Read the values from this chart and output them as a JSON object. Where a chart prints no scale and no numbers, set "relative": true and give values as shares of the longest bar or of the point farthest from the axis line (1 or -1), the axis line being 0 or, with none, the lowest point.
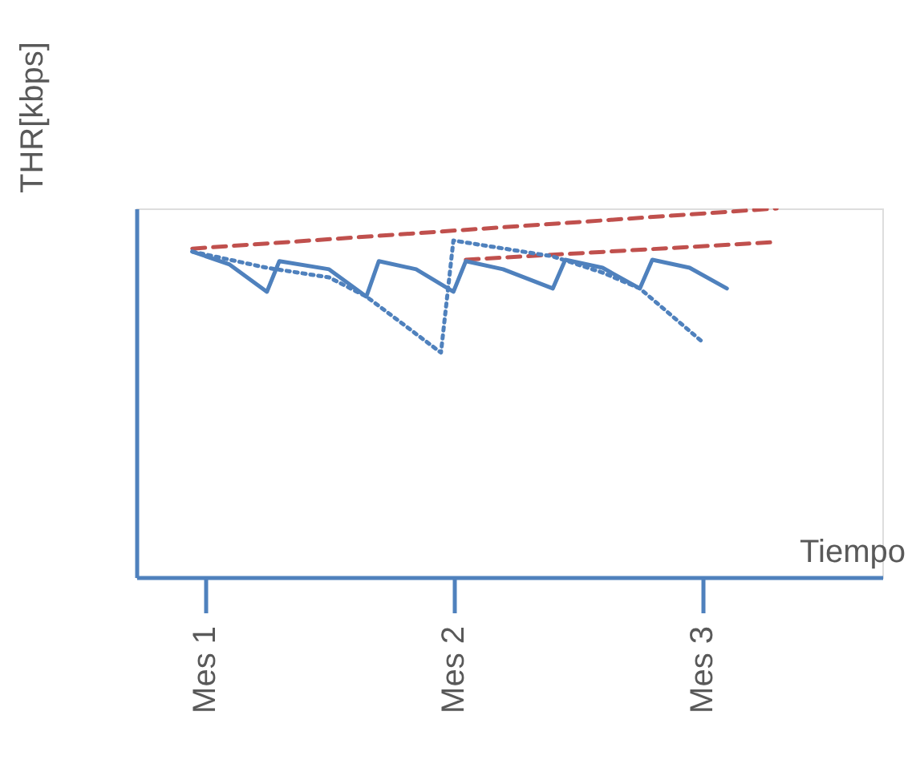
{
  "chart_data": {
    "type": "line",
    "relative": true,
    "xlabel": "Tiempo",
    "ylabel": "THR[kbps]",
    "categories": [
      null,
      null,
      null,
      null,
      null,
      "Mes 1",
      null,
      null,
      null,
      null,
      null,
      null,
      null,
      null,
      null,
      null,
      null,
      null,
      null,
      null,
      null,
      null,
      null,
      null,
      null,
      "Mes 2",
      null,
      null,
      null,
      null,
      null,
      null,
      null,
      null,
      null,
      null,
      null,
      null,
      null,
      null,
      null,
      null,
      null,
      null,
      null,
      "Mes 3",
      null,
      null,
      null,
      null,
      null,
      null,
      null,
      null,
      null,
      null,
      null,
      null,
      null,
      null
    ],
    "tick_labels": "x",
    "grid": false,
    "marker": "none",
    "series": [
      {
        "color": "#c0504d",
        "line_style": "dashed",
        "values": [
          null,
          null,
          null,
          null,
          0.891,
          null,
          null,
          null,
          null,
          null,
          null,
          null,
          null,
          null,
          null,
          null,
          null,
          null,
          null,
          null,
          null,
          null,
          null,
          null,
          null,
          null,
          null,
          null,
          null,
          null,
          null,
          null,
          null,
          null,
          null,
          null,
          null,
          null,
          null,
          null,
          null,
          null,
          null,
          null,
          null,
          null,
          null,
          null,
          null,
          null,
          null,
          1.0,
          null,
          null,
          null,
          null,
          null,
          null,
          null,
          null
        ]
      },
      {
        "color": "#c0504d",
        "line_style": "dashed",
        "values": [
          null,
          null,
          null,
          null,
          null,
          null,
          null,
          null,
          null,
          null,
          null,
          null,
          null,
          null,
          null,
          null,
          null,
          null,
          null,
          null,
          null,
          null,
          null,
          null,
          null,
          null,
          0.861,
          null,
          null,
          null,
          null,
          null,
          null,
          null,
          null,
          null,
          null,
          null,
          null,
          null,
          null,
          null,
          null,
          null,
          null,
          null,
          null,
          null,
          null,
          null,
          null,
          0.909,
          null,
          null,
          null,
          null,
          null,
          null,
          null,
          null
        ]
      },
      {
        "color": "#4f81bd",
        "line_style": "solid",
        "values": [
          null,
          null,
          null,
          null,
          0.883,
          null,
          null,
          0.848,
          null,
          null,
          0.774,
          0.857,
          null,
          null,
          null,
          0.835,
          null,
          null,
          0.761,
          0.857,
          null,
          null,
          0.835,
          null,
          null,
          0.774,
          0.857,
          null,
          null,
          0.835,
          null,
          null,
          null,
          0.783,
          0.861,
          null,
          null,
          0.839,
          null,
          null,
          0.783,
          0.861,
          null,
          null,
          0.839,
          null,
          null,
          0.783,
          null,
          null,
          null,
          null,
          null,
          null,
          null,
          null,
          null,
          null,
          null,
          null
        ]
      },
      {
        "color": "#4f81bd",
        "line_style": "dotted",
        "values": [
          null,
          null,
          null,
          null,
          0.883,
          null,
          null,
          null,
          null,
          null,
          0.839,
          null,
          null,
          null,
          null,
          0.813,
          null,
          null,
          0.761,
          null,
          null,
          null,
          null,
          null,
          0.609,
          0.913,
          null,
          null,
          null,
          null,
          null,
          null,
          null,
          0.87,
          null,
          null,
          null,
          0.826,
          null,
          null,
          0.783,
          null,
          null,
          null,
          null,
          0.639,
          null,
          null,
          null,
          null,
          null,
          null,
          null,
          null,
          null,
          null,
          null,
          null,
          null,
          null
        ]
      }
    ]
  }
}
